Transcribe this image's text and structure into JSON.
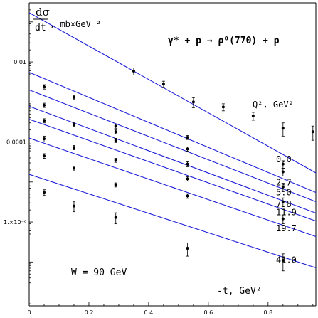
{
  "chart_data": {
    "type": "scatter",
    "x_range": [
      0.0,
      0.96
    ],
    "y_scale": "log10",
    "y_range": [
      8e-09,
      0.3
    ],
    "x_ticks": [
      {
        "value": 0.2,
        "label": "0.2"
      },
      {
        "value": 0.4,
        "label": "0.4"
      },
      {
        "value": 0.6,
        "label": "0.6"
      },
      {
        "value": 0.8,
        "label": "0.8"
      }
    ],
    "y_ticks": [
      {
        "value": 0.01,
        "label": "0.01"
      },
      {
        "value": 0.0001,
        "label": "0.0001"
      },
      {
        "value": 1e-06,
        "label": "1.×10⁻⁶"
      }
    ],
    "ylabel_top": "dσ",
    "ylabel_bottom": "dt",
    "ylabel_unit": ", mb×GeV⁻²",
    "xlabel": "-t, GeV²",
    "reaction": "γ* + p → ρ⁰(770) + p",
    "q2_header": "Q², GeV²",
    "energy_label": "W = 90 GeV",
    "series": [
      {
        "name": "0.0",
        "A": 0.17,
        "b": 9.6,
        "points": [
          [
            0.35,
            0.0059,
            0.0012
          ],
          [
            0.45,
            0.0028,
            0.0005
          ],
          [
            0.55,
            0.001,
            0.00028
          ],
          [
            0.65,
            0.00075,
            0.00015
          ],
          [
            0.75,
            0.00045,
            0.0001
          ],
          [
            0.85,
            0.00022,
            8e-05
          ],
          [
            0.95,
            0.00018,
            7e-05
          ]
        ]
      },
      {
        "name": "2.7",
        "A": 0.0055,
        "b": 7.2,
        "points": [
          [
            0.05,
            0.0024,
            0.0003
          ],
          [
            0.15,
            0.0013,
            0.00015
          ],
          [
            0.29,
            0.00018,
            2e-05
          ],
          [
            0.53,
            0.00013,
            1.5e-05
          ],
          [
            0.85,
            2.8e-05,
            6e-06
          ]
        ]
      },
      {
        "name": "5.0",
        "A": 0.002,
        "b": 6.7,
        "points": [
          [
            0.05,
            0.00083,
            0.0001
          ],
          [
            0.15,
            0.00027,
            3e-05
          ],
          [
            0.29,
            0.00025,
            3e-05
          ],
          [
            0.53,
            6.7e-05,
            8e-06
          ],
          [
            0.85,
            1.8e-05,
            4e-06
          ]
        ]
      },
      {
        "name": "7.8",
        "A": 0.00078,
        "b": 6.4,
        "points": [
          [
            0.05,
            0.00034,
            4e-05
          ],
          [
            0.15,
            0.00027,
            3e-05
          ],
          [
            0.29,
            0.00011,
            1.3e-05
          ],
          [
            0.53,
            2.8e-05,
            4e-06
          ],
          [
            0.85,
            7.5e-06,
            1.8e-06
          ]
        ]
      },
      {
        "name": "11.9",
        "A": 0.00037,
        "b": 6.1,
        "points": [
          [
            0.05,
            0.00012,
            2e-05
          ],
          [
            0.15,
            7.3e-05,
            9e-06
          ],
          [
            0.29,
            3.5e-05,
            4e-06
          ],
          [
            0.53,
            1.2e-05,
            1.5e-06
          ],
          [
            0.85,
            3.2e-06,
            8e-07
          ]
        ]
      },
      {
        "name": "19.7",
        "A": 0.000125,
        "b": 5.9,
        "points": [
          [
            0.05,
            4.5e-05,
            6e-06
          ],
          [
            0.15,
            2.2e-05,
            3e-06
          ],
          [
            0.29,
            8.5e-06,
            1e-06
          ],
          [
            0.53,
            4.5e-06,
            6e-07
          ],
          [
            0.85,
            1.2e-06,
            3e-07
          ]
        ]
      },
      {
        "name": "41.0",
        "A": 1.55e-05,
        "b": 5.6,
        "points": [
          [
            0.05,
            5.5e-06,
            9e-07
          ],
          [
            0.15,
            2.5e-06,
            7e-07
          ],
          [
            0.29,
            1.3e-06,
            4e-07
          ],
          [
            0.53,
            2.2e-07,
            8e-08
          ],
          [
            0.85,
            1.1e-07,
            5e-08
          ]
        ]
      }
    ]
  }
}
